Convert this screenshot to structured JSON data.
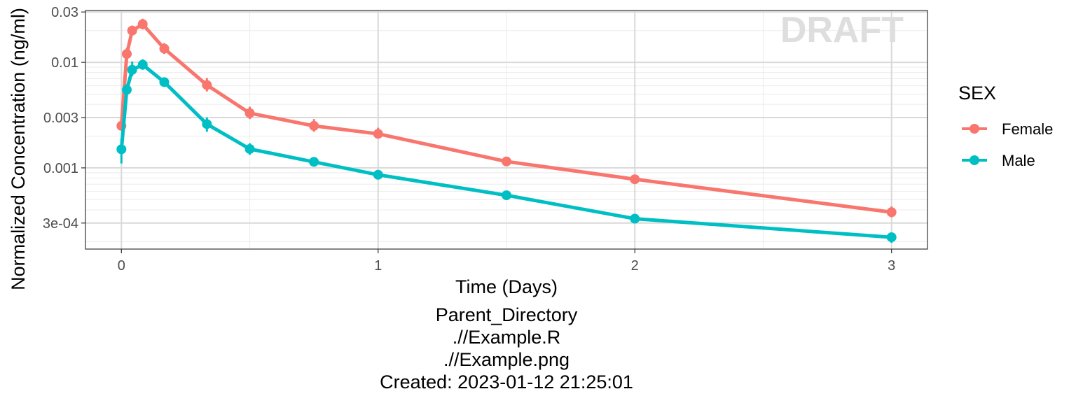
{
  "chart_data": {
    "type": "line",
    "xlabel": "Time (Days)",
    "ylabel": "Normalized Concentration (ng/ml)",
    "y_scale": "log",
    "xlim": [
      -0.14,
      3.14
    ],
    "ylim": [
      0.00017,
      0.031
    ],
    "x_ticks": [
      0,
      1,
      2,
      3
    ],
    "x_tick_labels": [
      "0",
      "1",
      "2",
      "3"
    ],
    "y_ticks": [
      0.0003,
      0.001,
      0.003,
      0.01,
      0.03
    ],
    "y_tick_labels": [
      "3e-04",
      "0.001",
      "0.003",
      "0.01",
      "0.03"
    ],
    "grid": true,
    "watermark": "DRAFT",
    "legend": {
      "title": "SEX",
      "position": "right"
    },
    "series": [
      {
        "name": "Female",
        "color": "#f8766d",
        "x": [
          0.0,
          0.021,
          0.042,
          0.083,
          0.167,
          0.333,
          0.5,
          0.75,
          1.0,
          1.5,
          2.0,
          3.0
        ],
        "y": [
          0.0025,
          0.012,
          0.02,
          0.023,
          0.0135,
          0.0061,
          0.0033,
          0.0025,
          0.0021,
          0.00115,
          0.00078,
          0.00038
        ],
        "err_low": [
          0.0023,
          0.0105,
          0.018,
          0.0205,
          0.012,
          0.0053,
          0.0029,
          0.0022,
          0.0019,
          0.00107,
          0.00071,
          0.00034
        ],
        "err_high": [
          0.0027,
          0.0137,
          0.0223,
          0.0259,
          0.0152,
          0.0071,
          0.0038,
          0.0029,
          0.0024,
          0.00124,
          0.00086,
          0.00043
        ]
      },
      {
        "name": "Male",
        "color": "#00bfc4",
        "x": [
          0.0,
          0.021,
          0.042,
          0.083,
          0.167,
          0.333,
          0.5,
          0.75,
          1.0,
          1.5,
          2.0,
          3.0
        ],
        "y": [
          0.0015,
          0.0055,
          0.0085,
          0.0095,
          0.0065,
          0.0026,
          0.00151,
          0.00114,
          0.00086,
          0.00055,
          0.00033,
          0.00022
        ],
        "err_low": [
          0.0011,
          0.0049,
          0.0074,
          0.0085,
          0.0059,
          0.0022,
          0.00133,
          0.00105,
          0.0008,
          0.00052,
          0.00031,
          0.000195
        ],
        "err_high": [
          0.0019,
          0.0062,
          0.0102,
          0.0107,
          0.0072,
          0.003,
          0.00171,
          0.00124,
          0.00093,
          0.00058,
          0.00035,
          0.000245
        ]
      }
    ]
  },
  "caption": {
    "lines": [
      "Parent_Directory",
      ".//Example.R",
      ".//Example.png",
      "Created: 2023-01-12 21:25:01"
    ]
  }
}
